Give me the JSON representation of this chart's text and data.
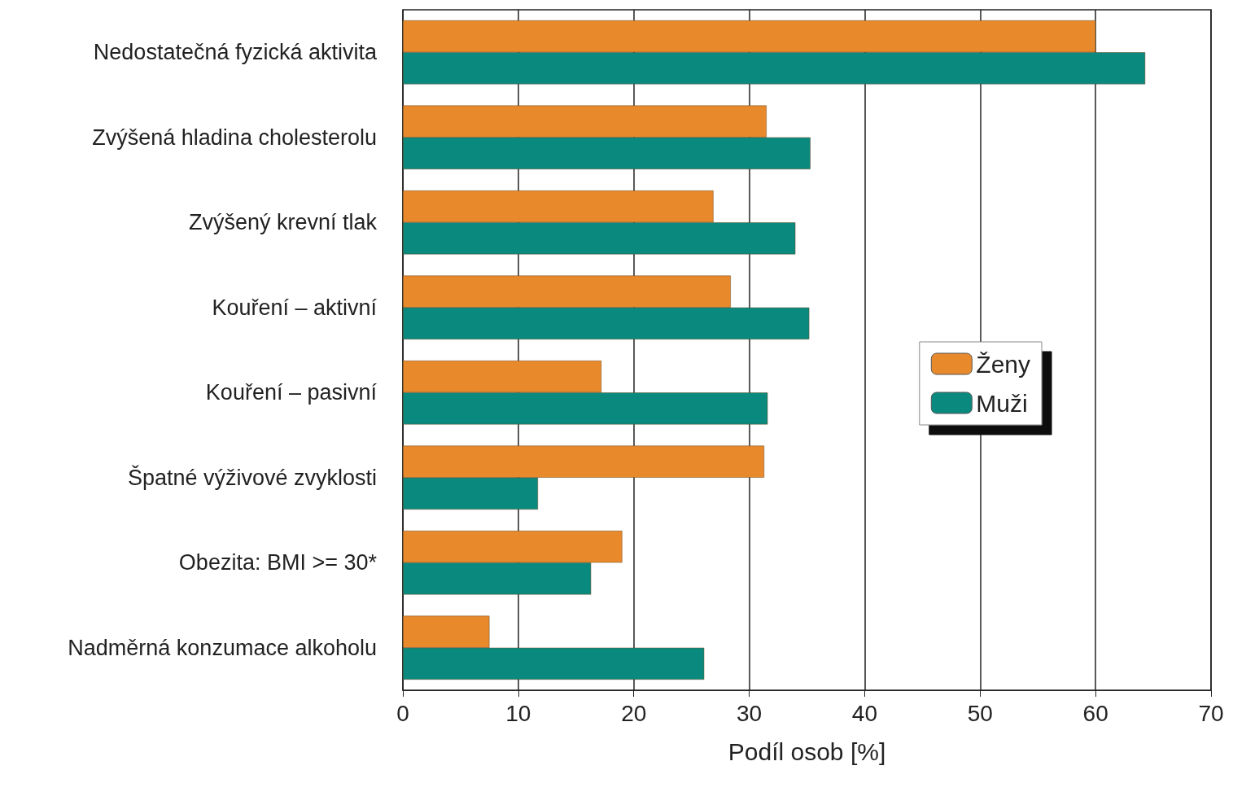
{
  "chart_data": {
    "type": "bar",
    "orientation": "horizontal",
    "xlabel": "Podíl osob [%]",
    "categories": [
      "Nedostatečná fyzická aktivita",
      "Zvýšená hladina cholesterolu",
      "Zvýšený krevní tlak",
      "Kouření – aktivní",
      "Kouření – pasivní",
      "Špatné výživové zvyklosti",
      "Obezita: BMI >= 30*",
      "Nadměrná konzumace alkoholu"
    ],
    "series": [
      {
        "name": "Ženy",
        "color": "#e8892b",
        "values": [
          60,
          31.5,
          26.9,
          28.4,
          17.2,
          31.3,
          19,
          7.5
        ]
      },
      {
        "name": "Muži",
        "color": "#0a8a7f",
        "values": [
          64.3,
          35.3,
          34,
          35.2,
          31.6,
          11.7,
          16.3,
          26.1
        ]
      }
    ],
    "xlim": [
      0,
      70
    ],
    "xticks": [
      0,
      10,
      20,
      30,
      40,
      50,
      60,
      70
    ],
    "grid": "x",
    "legend": "right"
  }
}
